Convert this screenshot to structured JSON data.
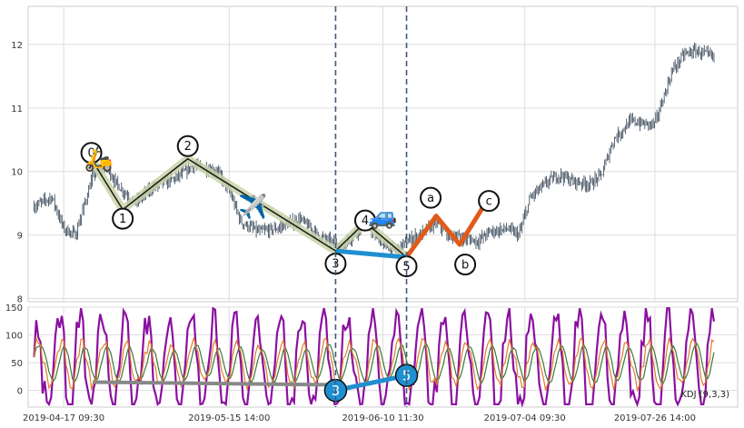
{
  "chart_data": [
    {
      "type": "candlestick",
      "panel": "price",
      "ylim": [
        7.95,
        12.6
      ],
      "yticks": [
        "8",
        "9",
        "10",
        "11",
        "12"
      ],
      "grid": true,
      "x_range": [
        "2019-04-11",
        "2019-08-09"
      ],
      "price_path": [
        [
          "2019-04-12",
          9.45
        ],
        [
          "2019-04-15",
          9.6
        ],
        [
          "2019-04-17",
          9.1
        ],
        [
          "2019-04-19",
          9.0
        ],
        [
          "2019-04-22",
          9.95
        ],
        [
          "2019-04-24",
          10.1
        ],
        [
          "2019-04-26",
          9.8
        ],
        [
          "2019-04-29",
          9.5
        ],
        [
          "2019-05-02",
          9.75
        ],
        [
          "2019-05-06",
          9.9
        ],
        [
          "2019-05-09",
          10.1
        ],
        [
          "2019-05-13",
          10.0
        ],
        [
          "2019-05-15",
          9.7
        ],
        [
          "2019-05-17",
          9.2
        ],
        [
          "2019-05-20",
          9.05
        ],
        [
          "2019-05-23",
          9.1
        ],
        [
          "2019-05-27",
          9.25
        ],
        [
          "2019-05-30",
          9.0
        ],
        [
          "2019-06-03",
          8.8
        ],
        [
          "2019-06-05",
          9.0
        ],
        [
          "2019-06-07",
          9.2
        ],
        [
          "2019-06-10",
          8.85
        ],
        [
          "2019-06-12",
          8.75
        ],
        [
          "2019-06-14",
          8.9
        ],
        [
          "2019-06-17",
          9.05
        ],
        [
          "2019-06-19",
          9.2
        ],
        [
          "2019-06-21",
          9.0
        ],
        [
          "2019-06-24",
          8.95
        ],
        [
          "2019-06-26",
          8.9
        ],
        [
          "2019-06-28",
          9.05
        ],
        [
          "2019-07-01",
          9.1
        ],
        [
          "2019-07-03",
          9.0
        ],
        [
          "2019-07-05",
          9.6
        ],
        [
          "2019-07-08",
          9.85
        ],
        [
          "2019-07-10",
          9.95
        ],
        [
          "2019-07-12",
          9.85
        ],
        [
          "2019-07-15",
          9.8
        ],
        [
          "2019-07-17",
          9.95
        ],
        [
          "2019-07-19",
          10.5
        ],
        [
          "2019-07-22",
          10.8
        ],
        [
          "2019-07-24",
          10.75
        ],
        [
          "2019-07-26",
          10.75
        ],
        [
          "2019-07-29",
          11.6
        ],
        [
          "2019-07-31",
          11.85
        ],
        [
          "2019-08-02",
          11.9
        ],
        [
          "2019-08-05",
          11.8
        ]
      ],
      "wave_labels": [
        {
          "label": "0",
          "date": "2019-04-22",
          "price": 10.15
        },
        {
          "label": "1",
          "date": "2019-04-27",
          "price": 9.4
        },
        {
          "label": "2",
          "date": "2019-05-08",
          "price": 10.2
        },
        {
          "label": "3",
          "date": "2019-06-02",
          "price": 8.75
        },
        {
          "label": "4",
          "date": "2019-06-07",
          "price": 9.2
        },
        {
          "label": "5",
          "date": "2019-06-14",
          "price": 8.65
        },
        {
          "label": "a",
          "date": "2019-06-19",
          "price": 9.3
        },
        {
          "label": "b",
          "date": "2019-06-23",
          "price": 8.85
        },
        {
          "label": "c",
          "date": "2019-06-27",
          "price": 9.45
        }
      ],
      "emoji_markers": [
        {
          "name": "scooter",
          "glyph": "🛵",
          "date": "2019-04-23",
          "price": 10.2
        },
        {
          "name": "airplane",
          "glyph": "✈️",
          "date": "2019-05-19",
          "price": 9.45
        },
        {
          "name": "car",
          "glyph": "🚙",
          "date": "2019-06-10",
          "price": 9.3
        }
      ],
      "vertical_lines": [
        "2019-06-02",
        "2019-06-14"
      ],
      "colors": {
        "candle": "#2d3e50",
        "wave_main": "#1a1a1a",
        "wave_band": "#c9d3a8",
        "wave_corrective": "#e05a1a",
        "link_3_5": "#1f8fd0",
        "vline": "#3d5a78"
      }
    },
    {
      "type": "line",
      "panel": "indicator",
      "title": "KDJ (9,3,3)",
      "ylim": [
        -30,
        150
      ],
      "yticks": [
        "0",
        "50",
        "100",
        "150"
      ],
      "grid": true,
      "series": [
        {
          "name": "K",
          "color": "#e07b2a"
        },
        {
          "name": "D",
          "color": "#3a7a3a"
        },
        {
          "name": "J",
          "color": "#8b0fa0"
        }
      ],
      "markers": [
        {
          "label": "3",
          "date": "2019-06-02",
          "value": 0
        },
        {
          "label": "5",
          "date": "2019-06-14",
          "value": 27
        }
      ],
      "link_color": "#888888"
    }
  ],
  "xaxis": {
    "tick_labels": [
      {
        "date": "2019-04-17",
        "text": "2019-04-17 09:30"
      },
      {
        "date": "2019-05-15",
        "text": "2019-05-15 14:00"
      },
      {
        "date": "2019-06-10",
        "text": "2019-06-10 11:30"
      },
      {
        "date": "2019-07-04",
        "text": "2019-07-04 09:30"
      },
      {
        "date": "2019-07-26",
        "text": "2019-07-26 14:00"
      }
    ]
  }
}
